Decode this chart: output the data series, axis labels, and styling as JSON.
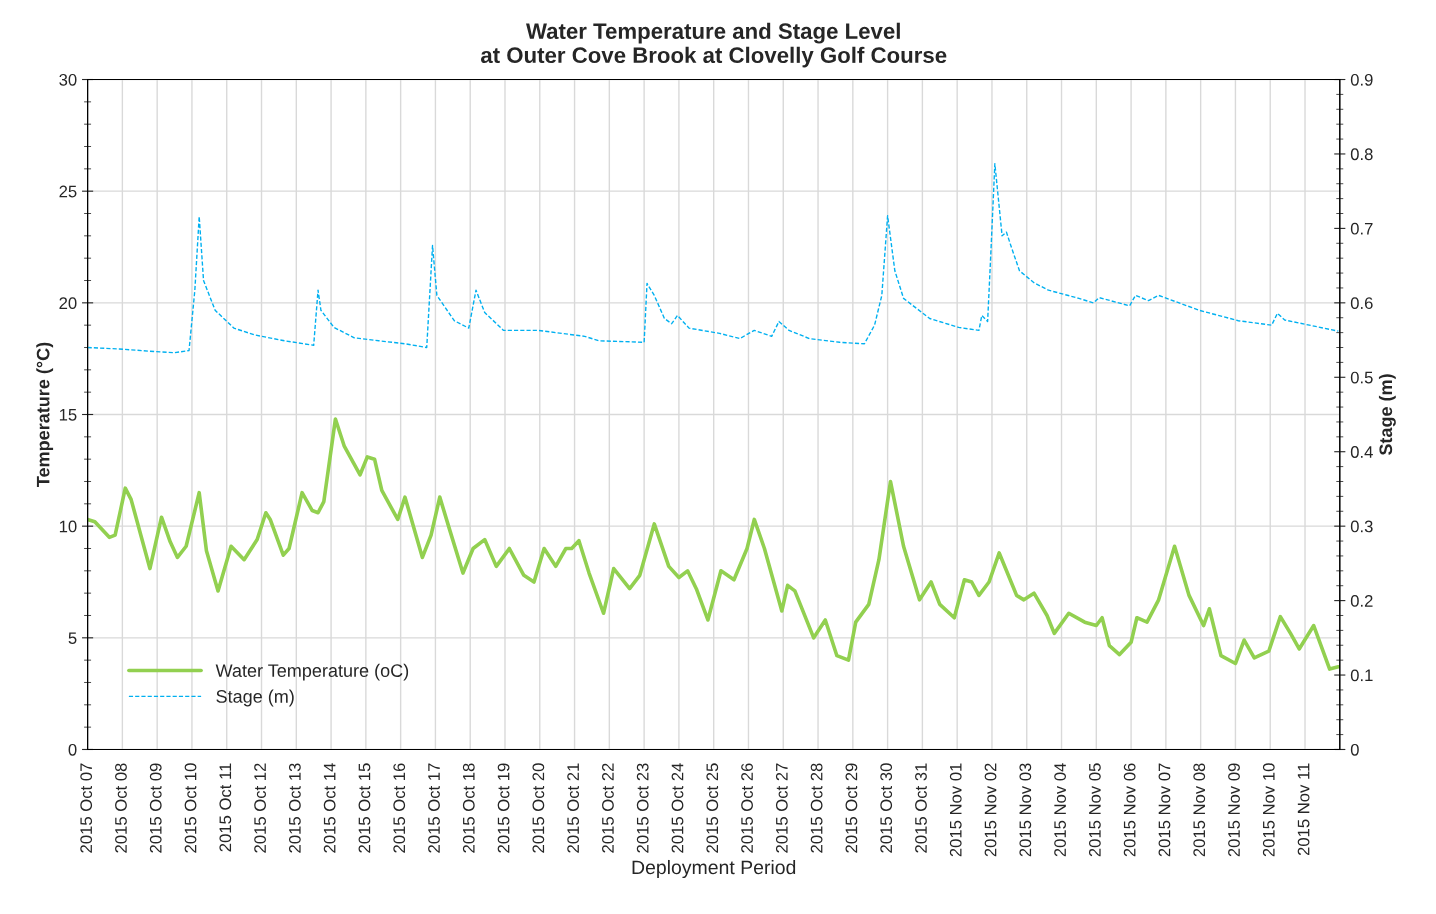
{
  "chart_data": {
    "type": "line",
    "title": "Water Temperature and Stage Level\nat Outer Cove Brook at Clovelly Golf Course",
    "xlabel": "Deployment Period",
    "ylabel": "Temperature (°C)",
    "y2label": "Stage (m)",
    "xlim": [
      "2015-10-07",
      "2015-11-12"
    ],
    "xticks": [
      {
        "value": "2015-10-07",
        "label": "2015 Oct 07"
      },
      {
        "value": "2015-10-08",
        "label": "2015 Oct 08"
      },
      {
        "value": "2015-10-09",
        "label": "2015 Oct 09"
      },
      {
        "value": "2015-10-10",
        "label": "2015 Oct 10"
      },
      {
        "value": "2015-10-11",
        "label": "2015 Oct 11"
      },
      {
        "value": "2015-10-12",
        "label": "2015 Oct 12"
      },
      {
        "value": "2015-10-13",
        "label": "2015 Oct 13"
      },
      {
        "value": "2015-10-14",
        "label": "2015 Oct 14"
      },
      {
        "value": "2015-10-15",
        "label": "2015 Oct 15"
      },
      {
        "value": "2015-10-16",
        "label": "2015 Oct 16"
      },
      {
        "value": "2015-10-17",
        "label": "2015 Oct 17"
      },
      {
        "value": "2015-10-18",
        "label": "2015 Oct 18"
      },
      {
        "value": "2015-10-19",
        "label": "2015 Oct 19"
      },
      {
        "value": "2015-10-20",
        "label": "2015 Oct 20"
      },
      {
        "value": "2015-10-21",
        "label": "2015 Oct 21"
      },
      {
        "value": "2015-10-22",
        "label": "2015 Oct 22"
      },
      {
        "value": "2015-10-23",
        "label": "2015 Oct 23"
      },
      {
        "value": "2015-10-24",
        "label": "2015 Oct 24"
      },
      {
        "value": "2015-10-25",
        "label": "2015 Oct 25"
      },
      {
        "value": "2015-10-26",
        "label": "2015 Oct 26"
      },
      {
        "value": "2015-10-27",
        "label": "2015 Oct 27"
      },
      {
        "value": "2015-10-28",
        "label": "2015 Oct 28"
      },
      {
        "value": "2015-10-29",
        "label": "2015 Oct 29"
      },
      {
        "value": "2015-10-30",
        "label": "2015 Oct 30"
      },
      {
        "value": "2015-10-31",
        "label": "2015 Oct 31"
      },
      {
        "value": "2015-11-01",
        "label": "2015 Nov 01"
      },
      {
        "value": "2015-11-02",
        "label": "2015 Nov 02"
      },
      {
        "value": "2015-11-03",
        "label": "2015 Nov 03"
      },
      {
        "value": "2015-11-04",
        "label": "2015 Nov 04"
      },
      {
        "value": "2015-11-05",
        "label": "2015 Nov 05"
      },
      {
        "value": "2015-11-06",
        "label": "2015 Nov 06"
      },
      {
        "value": "2015-11-07",
        "label": "2015 Nov 07"
      },
      {
        "value": "2015-11-08",
        "label": "2015 Nov 08"
      },
      {
        "value": "2015-11-09",
        "label": "2015 Nov 09"
      },
      {
        "value": "2015-11-10",
        "label": "2015 Nov 10"
      },
      {
        "value": "2015-11-11",
        "label": "2015 Nov 11"
      }
    ],
    "ylim": [
      0,
      30
    ],
    "yticks": [
      0,
      5,
      10,
      15,
      20,
      25,
      30
    ],
    "y2lim": [
      0,
      0.9
    ],
    "y2ticks": [
      0,
      0.1,
      0.2,
      0.3,
      0.4,
      0.5,
      0.6,
      0.7,
      0.8,
      0.9
    ],
    "grid": true,
    "legend": "bottom left",
    "marker": "none",
    "series": [
      {
        "name": "Water Temperature (oC)",
        "color": "#92d050",
        "line_style": "solid",
        "x": [
          "2015-10-07T00:00",
          "2015-10-07T05:00",
          "2015-10-07T15:00",
          "2015-10-07T19:00",
          "2015-10-08T02:00",
          "2015-10-08T06:00",
          "2015-10-08T19:00",
          "2015-10-09T03:00",
          "2015-10-09T09:00",
          "2015-10-09T14:00",
          "2015-10-09T20:00",
          "2015-10-10T05:00",
          "2015-10-10T10:00",
          "2015-10-10T18:00",
          "2015-10-11T03:00",
          "2015-10-11T12:00",
          "2015-10-11T21:00",
          "2015-10-12T03:00",
          "2015-10-12T06:00",
          "2015-10-12T15:00",
          "2015-10-12T19:00",
          "2015-10-13T04:00",
          "2015-10-13T11:00",
          "2015-10-13T15:00",
          "2015-10-13T19:00",
          "2015-10-14T03:00",
          "2015-10-14T09:00",
          "2015-10-14T20:00",
          "2015-10-15T01:00",
          "2015-10-15T06:00",
          "2015-10-15T11:00",
          "2015-10-15T22:00",
          "2015-10-16T03:00",
          "2015-10-16T15:00",
          "2015-10-16T21:00",
          "2015-10-17T03:00",
          "2015-10-17T10:00",
          "2015-10-17T19:00",
          "2015-10-18T02:00",
          "2015-10-18T10:00",
          "2015-10-18T18:00",
          "2015-10-19T03:00",
          "2015-10-19T13:00",
          "2015-10-19T20:00",
          "2015-10-20T03:00",
          "2015-10-20T11:00",
          "2015-10-20T18:00",
          "2015-10-20T22:00",
          "2015-10-21T03:00",
          "2015-10-21T10:00",
          "2015-10-21T20:00",
          "2015-10-22T03:00",
          "2015-10-22T14:00",
          "2015-10-22T21:00",
          "2015-10-23T07:00",
          "2015-10-23T17:00",
          "2015-10-24T00:00",
          "2015-10-24T06:00",
          "2015-10-24T12:00",
          "2015-10-24T20:00",
          "2015-10-25T05:00",
          "2015-10-25T14:00",
          "2015-10-25T23:00",
          "2015-10-26T04:00",
          "2015-10-26T11:00",
          "2015-10-26T23:00",
          "2015-10-27T03:00",
          "2015-10-27T08:00",
          "2015-10-27T21:00",
          "2015-10-28T05:00",
          "2015-10-28T13:00",
          "2015-10-28T21:00",
          "2015-10-29T02:00",
          "2015-10-29T11:00",
          "2015-10-29T18:00",
          "2015-10-30T02:00",
          "2015-10-30T11:00",
          "2015-10-30T22:00",
          "2015-10-31T06:00",
          "2015-10-31T12:00",
          "2015-10-31T22:00",
          "2015-11-01T05:00",
          "2015-11-01T10:00",
          "2015-11-01T15:00",
          "2015-11-01T22:00",
          "2015-11-02T05:00",
          "2015-11-02T17:00",
          "2015-11-02T22:00",
          "2015-11-03T05:00",
          "2015-11-03T14:00",
          "2015-11-03T19:00",
          "2015-11-04T05:00",
          "2015-11-04T16:00",
          "2015-11-05T00:00",
          "2015-11-05T04:00",
          "2015-11-05T09:00",
          "2015-11-05T16:00",
          "2015-11-06T00:00",
          "2015-11-06T04:00",
          "2015-11-06T11:00",
          "2015-11-06T19:00",
          "2015-11-07T06:00",
          "2015-11-07T16:00",
          "2015-11-08T02:00",
          "2015-11-08T06:00",
          "2015-11-08T14:00",
          "2015-11-09T00:00",
          "2015-11-09T06:00",
          "2015-11-09T13:00",
          "2015-11-09T23:00",
          "2015-11-10T07:00",
          "2015-11-10T14:00",
          "2015-11-10T20:00",
          "2015-11-11T06:00",
          "2015-11-11T17:00",
          "2015-11-11T23:00"
        ],
        "values": [
          10.3,
          10.2,
          9.5,
          9.6,
          11.7,
          11.2,
          8.1,
          10.4,
          9.3,
          8.6,
          9.1,
          11.5,
          8.9,
          7.1,
          9.1,
          8.5,
          9.4,
          10.6,
          10.3,
          8.7,
          9.0,
          11.5,
          10.7,
          10.6,
          11.1,
          14.8,
          13.6,
          12.3,
          13.1,
          13.0,
          11.6,
          10.3,
          11.3,
          8.6,
          9.6,
          11.3,
          9.8,
          7.9,
          9.0,
          9.4,
          8.2,
          9.0,
          7.8,
          7.5,
          9.0,
          8.2,
          9.0,
          9.0,
          9.35,
          7.9,
          6.1,
          8.1,
          7.2,
          7.8,
          10.1,
          8.2,
          7.7,
          8.0,
          7.2,
          5.8,
          8.0,
          7.6,
          9.0,
          10.3,
          9.0,
          6.2,
          7.35,
          7.1,
          5.0,
          5.8,
          4.2,
          4.0,
          5.7,
          6.5,
          8.5,
          12.0,
          9.1,
          6.7,
          7.5,
          6.5,
          5.9,
          7.6,
          7.5,
          6.9,
          7.5,
          8.8,
          6.9,
          6.7,
          7.0,
          6.0,
          5.2,
          6.1,
          5.7,
          5.55,
          5.9,
          4.65,
          4.25,
          4.8,
          5.9,
          5.7,
          6.7,
          9.1,
          6.9,
          5.55,
          6.3,
          4.2,
          3.85,
          4.9,
          4.1,
          4.4,
          5.95,
          5.2,
          4.5,
          5.55,
          3.6,
          3.7
        ]
      },
      {
        "name": "Stage (m)",
        "color": "#00b0f0",
        "axis": "y2",
        "line_style": "dashed",
        "x": [
          "2015-10-07T00:00",
          "2015-10-07T22:00",
          "2015-10-08T19:00",
          "2015-10-09T12:00",
          "2015-10-09T22:00",
          "2015-10-10T02:00",
          "2015-10-10T05:00",
          "2015-10-10T08:00",
          "2015-10-10T16:00",
          "2015-10-11T05:00",
          "2015-10-11T19:00",
          "2015-10-12T16:00",
          "2015-10-13T12:00",
          "2015-10-13T15:00",
          "2015-10-13T17:00",
          "2015-10-14T02:00",
          "2015-10-14T16:00",
          "2015-10-15T09:00",
          "2015-10-16T03:00",
          "2015-10-16T18:00",
          "2015-10-16T22:00",
          "2015-10-17T01:00",
          "2015-10-17T13:00",
          "2015-10-17T23:00",
          "2015-10-18T04:00",
          "2015-10-18T10:00",
          "2015-10-18T23:00",
          "2015-10-19T23:00",
          "2015-10-21T07:00",
          "2015-10-21T17:00",
          "2015-10-23T00:00",
          "2015-10-23T02:00",
          "2015-10-23T07:00",
          "2015-10-23T14:00",
          "2015-10-23T19:00",
          "2015-10-23T23:00",
          "2015-10-24T07:00",
          "2015-10-25T04:00",
          "2015-10-25T18:00",
          "2015-10-26T04:00",
          "2015-10-26T16:00",
          "2015-10-26T21:00",
          "2015-10-27T04:00",
          "2015-10-27T18:00",
          "2015-10-28T15:00",
          "2015-10-29T08:00",
          "2015-10-29T15:00",
          "2015-10-29T20:00",
          "2015-10-30T00:00",
          "2015-10-30T05:00",
          "2015-10-30T11:00",
          "2015-10-31T05:00",
          "2015-11-01T01:00",
          "2015-11-01T15:00",
          "2015-11-01T17:00",
          "2015-11-01T21:00",
          "2015-11-01T23:00",
          "2015-11-02T02:00",
          "2015-11-02T07:00",
          "2015-11-02T10:00",
          "2015-11-02T13:00",
          "2015-11-02T19:00",
          "2015-11-03T05:00",
          "2015-11-03T15:00",
          "2015-11-04T12:00",
          "2015-11-04T22:00",
          "2015-11-05T02:00",
          "2015-11-05T23:00",
          "2015-11-06T03:00",
          "2015-11-06T12:00",
          "2015-11-06T19:00",
          "2015-11-07T23:00",
          "2015-11-09T02:00",
          "2015-11-10T01:00",
          "2015-11-10T05:00",
          "2015-11-10T10:00",
          "2015-11-11T03:00",
          "2015-11-11T23:00"
        ],
        "values": [
          0.54,
          0.538,
          0.535,
          0.533,
          0.536,
          0.617,
          0.716,
          0.63,
          0.59,
          0.566,
          0.557,
          0.549,
          0.543,
          0.617,
          0.59,
          0.567,
          0.553,
          0.549,
          0.545,
          0.54,
          0.677,
          0.61,
          0.576,
          0.566,
          0.617,
          0.587,
          0.563,
          0.563,
          0.555,
          0.549,
          0.547,
          0.626,
          0.61,
          0.579,
          0.572,
          0.583,
          0.566,
          0.559,
          0.552,
          0.563,
          0.555,
          0.575,
          0.563,
          0.552,
          0.547,
          0.545,
          0.57,
          0.61,
          0.717,
          0.643,
          0.606,
          0.579,
          0.567,
          0.563,
          0.583,
          0.575,
          0.657,
          0.787,
          0.69,
          0.695,
          0.677,
          0.643,
          0.627,
          0.617,
          0.606,
          0.6,
          0.607,
          0.596,
          0.61,
          0.603,
          0.61,
          0.59,
          0.576,
          0.57,
          0.586,
          0.577,
          0.57,
          0.562
        ]
      }
    ]
  }
}
